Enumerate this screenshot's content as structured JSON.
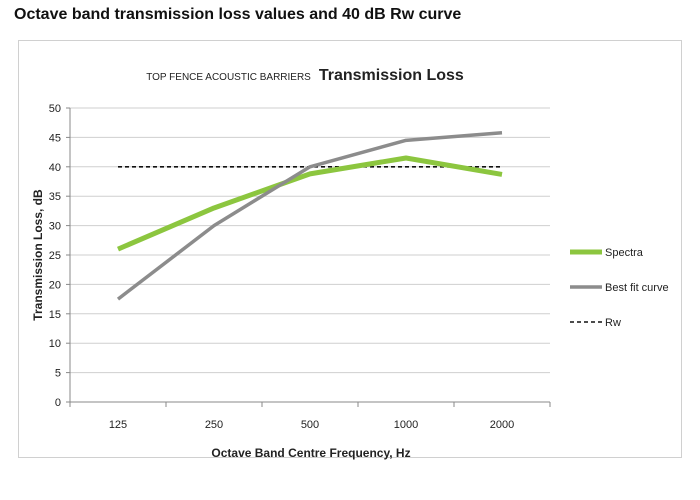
{
  "page_title": "Octave band transmission loss values and 40 dB Rw curve",
  "chart_data": {
    "type": "line",
    "title_prefix": "TOP FENCE ACOUSTIC BARRIERS",
    "title": "Transmission Loss",
    "xlabel": "Octave Band Centre Frequency, Hz",
    "ylabel": "Transmission Loss, dB",
    "categories": [
      "125",
      "250",
      "500",
      "1000",
      "2000"
    ],
    "ylim": [
      0,
      50
    ],
    "yticks": [
      0,
      5,
      10,
      15,
      20,
      25,
      30,
      35,
      40,
      45,
      50
    ],
    "grid": true,
    "legend_position": "right",
    "series": [
      {
        "name": "Spectra",
        "values": [
          26,
          33,
          38.8,
          41.5,
          38.7
        ],
        "color": "#8cc63f",
        "style": "solid-thick"
      },
      {
        "name": "Best fit curve",
        "values": [
          17.5,
          30,
          40,
          44.5,
          45.8
        ],
        "color": "#8c8c8c",
        "style": "solid"
      },
      {
        "name": "Rw",
        "values": [
          40,
          40,
          40,
          40,
          40
        ],
        "color": "#111111",
        "style": "dashed"
      }
    ]
  }
}
